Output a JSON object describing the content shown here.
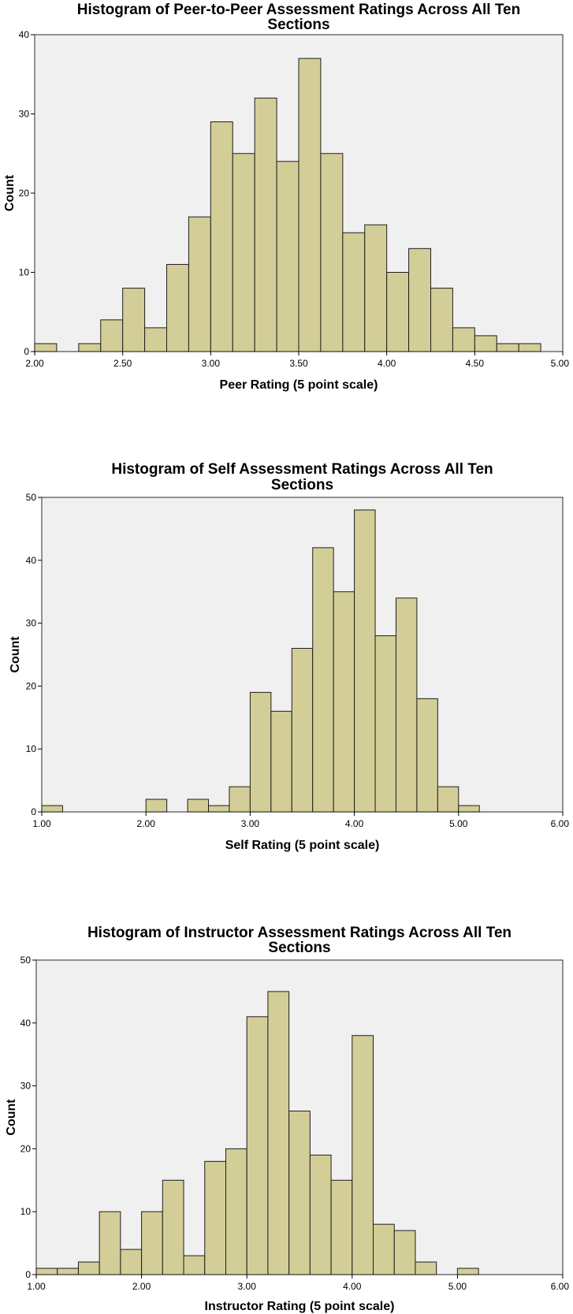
{
  "chart_data": [
    {
      "type": "bar",
      "title_lines": [
        "Histogram of Peer-to-Peer Assessment Ratings Across All Ten",
        "Sections"
      ],
      "xlabel": "Peer Rating (5 point scale)",
      "ylabel": "Count",
      "xlim": [
        2.0,
        5.0
      ],
      "ylim": [
        0,
        40
      ],
      "xticks": [
        "2.00",
        "2.50",
        "3.00",
        "3.50",
        "4.00",
        "4.50",
        "5.00"
      ],
      "yticks": [
        "0",
        "10",
        "20",
        "30",
        "40"
      ],
      "bin_start": 2.0,
      "bin_width": 0.125,
      "counts": [
        1,
        0,
        1,
        4,
        8,
        3,
        11,
        17,
        29,
        25,
        32,
        24,
        37,
        25,
        15,
        16,
        10,
        13,
        8,
        3,
        2,
        1,
        1
      ],
      "bar_color": "#d3ce97",
      "plot_background": "#f0f0f0"
    },
    {
      "type": "bar",
      "title_lines": [
        "Histogram of Self Assessment Ratings Across All Ten",
        "Sections"
      ],
      "xlabel": "Self Rating (5 point scale)",
      "ylabel": "Count",
      "xlim": [
        1.0,
        6.0
      ],
      "ylim": [
        0,
        50
      ],
      "xticks": [
        "1.00",
        "2.00",
        "3.00",
        "4.00",
        "5.00",
        "6.00"
      ],
      "yticks": [
        "0",
        "10",
        "20",
        "30",
        "40",
        "50"
      ],
      "bin_start": 1.0,
      "bin_width": 0.2,
      "counts": [
        1,
        0,
        0,
        0,
        0,
        2,
        0,
        2,
        1,
        4,
        19,
        16,
        26,
        42,
        35,
        48,
        28,
        34,
        18,
        4,
        1
      ],
      "bar_color": "#d3ce97",
      "plot_background": "#f0f0f0"
    },
    {
      "type": "bar",
      "title_lines": [
        "Histogram of Instructor Assessment Ratings Across All Ten",
        "Sections"
      ],
      "xlabel": "Instructor Rating (5 point scale)",
      "ylabel": "Count",
      "xlim": [
        1.0,
        6.0
      ],
      "ylim": [
        0,
        50
      ],
      "xticks": [
        "1.00",
        "2.00",
        "3.00",
        "4.00",
        "5.00",
        "6.00"
      ],
      "yticks": [
        "0",
        "10",
        "20",
        "30",
        "40",
        "50"
      ],
      "bin_start": 1.0,
      "bin_width": 0.2,
      "counts": [
        1,
        1,
        2,
        10,
        4,
        10,
        15,
        3,
        18,
        20,
        41,
        45,
        26,
        19,
        15,
        38,
        8,
        7,
        2,
        0,
        1
      ],
      "bar_color": "#d3ce97",
      "plot_background": "#f0f0f0"
    }
  ]
}
